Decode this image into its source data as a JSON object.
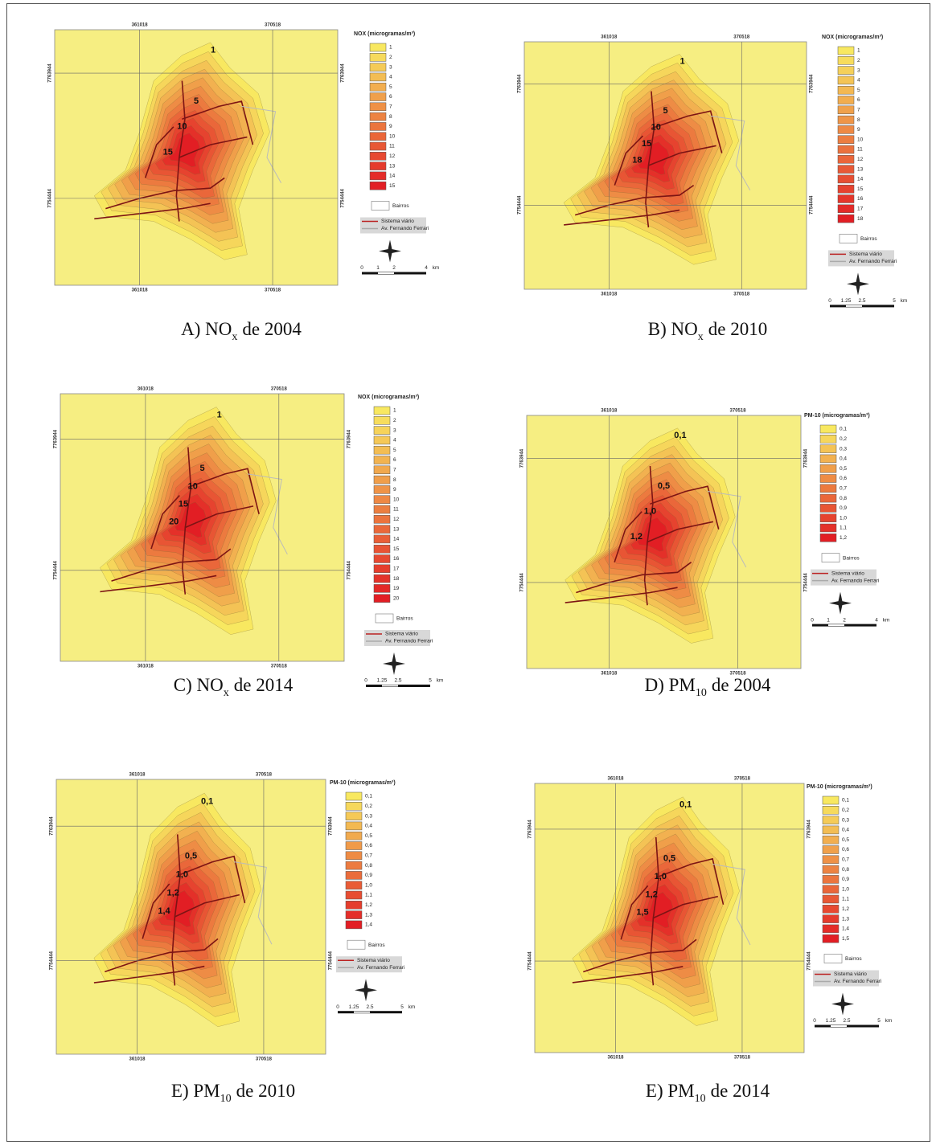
{
  "panels": [
    {
      "caption": {
        "prefix": "A) NO",
        "sub": "x",
        "suffix": "de 2004"
      },
      "coords": {
        "x": [
          "361018",
          "370518"
        ],
        "y": [
          "7763944",
          "7754444"
        ]
      },
      "legend": {
        "title": "NOX (microgramas/m³)",
        "items": [
          "1",
          "2",
          "3",
          "4",
          "5",
          "6",
          "7",
          "8",
          "9",
          "10",
          "11",
          "12",
          "13",
          "14",
          "15"
        ],
        "bairros": "Bairros",
        "roads": [
          "Sistema viário",
          "Av. Fernando Ferrari"
        ]
      },
      "contour_labels": [
        "1",
        "5",
        "10",
        "15"
      ],
      "scale": [
        "0",
        "1",
        "2",
        "4",
        "km"
      ]
    },
    {
      "caption": {
        "prefix": "B) NO",
        "sub": "x",
        "suffix": "de 2010"
      },
      "coords": {
        "x": [
          "361018",
          "370518"
        ],
        "y": [
          "7763944",
          "7754444"
        ]
      },
      "legend": {
        "title": "NOX (microgramas/m³)",
        "items": [
          "1",
          "2",
          "3",
          "4",
          "5",
          "6",
          "7",
          "8",
          "9",
          "10",
          "11",
          "12",
          "13",
          "14",
          "15",
          "16",
          "17",
          "18"
        ],
        "bairros": "Bairros",
        "roads": [
          "Sistema viário",
          "Av. Fernando Ferrari"
        ]
      },
      "contour_labels": [
        "1",
        "5",
        "10",
        "15",
        "18"
      ],
      "scale": [
        "0",
        "1.25",
        "2.5",
        "5",
        "km"
      ]
    },
    {
      "caption": {
        "prefix": "C) NO",
        "sub": "x",
        "suffix": "de 2014"
      },
      "coords": {
        "x": [
          "361018",
          "370518"
        ],
        "y": [
          "7763944",
          "7754444"
        ]
      },
      "legend": {
        "title": "NOX (microgramas/m³)",
        "items": [
          "1",
          "2",
          "3",
          "4",
          "5",
          "6",
          "7",
          "8",
          "9",
          "10",
          "11",
          "12",
          "13",
          "14",
          "15",
          "16",
          "17",
          "18",
          "19",
          "20"
        ],
        "bairros": "Bairros",
        "roads": [
          "Sistema viário",
          "Av. Fernando Ferrari"
        ]
      },
      "contour_labels": [
        "1",
        "5",
        "10",
        "15",
        "20"
      ],
      "scale": [
        "0",
        "1.25",
        "2.5",
        "5",
        "km"
      ]
    },
    {
      "caption": {
        "prefix": "D) PM",
        "sub": "10",
        "suffix": "de 2004"
      },
      "coords": {
        "x": [
          "361018",
          "370518"
        ],
        "y": [
          "7763944",
          "7754444"
        ]
      },
      "legend": {
        "title": "PM-10 (microgramas/m³)",
        "items": [
          "0,1",
          "0,2",
          "0,3",
          "0,4",
          "0,5",
          "0,6",
          "0,7",
          "0,8",
          "0,9",
          "1,0",
          "1,1",
          "1,2"
        ],
        "bairros": "Bairros",
        "roads": [
          "Sistema viário",
          "Av. Fernando Ferrari"
        ]
      },
      "contour_labels": [
        "0,1",
        "0,5",
        "1,0",
        "1,2"
      ],
      "scale": [
        "0",
        "1",
        "2",
        "4",
        "km"
      ]
    },
    {
      "caption": {
        "prefix": "E) PM",
        "sub": "10",
        "suffix": "de 2010"
      },
      "coords": {
        "x": [
          "361018",
          "370518"
        ],
        "y": [
          "7763944",
          "7754444"
        ]
      },
      "legend": {
        "title": "PM-10 (microgramas/m³)",
        "items": [
          "0,1",
          "0,2",
          "0,3",
          "0,4",
          "0,5",
          "0,6",
          "0,7",
          "0,8",
          "0,9",
          "1,0",
          "1,1",
          "1,2",
          "1,3",
          "1,4"
        ],
        "bairros": "Bairros",
        "roads": [
          "Sistema viário",
          "Av. Fernando Ferrari"
        ]
      },
      "contour_labels": [
        "0,1",
        "0,5",
        "1,0",
        "1,2",
        "1,4"
      ],
      "scale": [
        "0",
        "1.25",
        "2.5",
        "5",
        "km"
      ]
    },
    {
      "caption": {
        "prefix": "E) PM",
        "sub": "10",
        "suffix": "de 2014"
      },
      "coords": {
        "x": [
          "361018",
          "370518"
        ],
        "y": [
          "7763944",
          "7754444"
        ]
      },
      "legend": {
        "title": "PM-10 (microgramas/m³)",
        "items": [
          "0,1",
          "0,2",
          "0,3",
          "0,4",
          "0,5",
          "0,6",
          "0,7",
          "0,8",
          "0,9",
          "1,0",
          "1,1",
          "1,2",
          "1,3",
          "1,4",
          "1,5"
        ],
        "bairros": "Bairros",
        "roads": [
          "Sistema viário",
          "Av. Fernando Ferrari"
        ]
      },
      "contour_labels": [
        "0,1",
        "0,5",
        "1,0",
        "1,2",
        "1,5"
      ],
      "scale": [
        "0",
        "1.25",
        "2.5",
        "5",
        "km"
      ]
    }
  ]
}
